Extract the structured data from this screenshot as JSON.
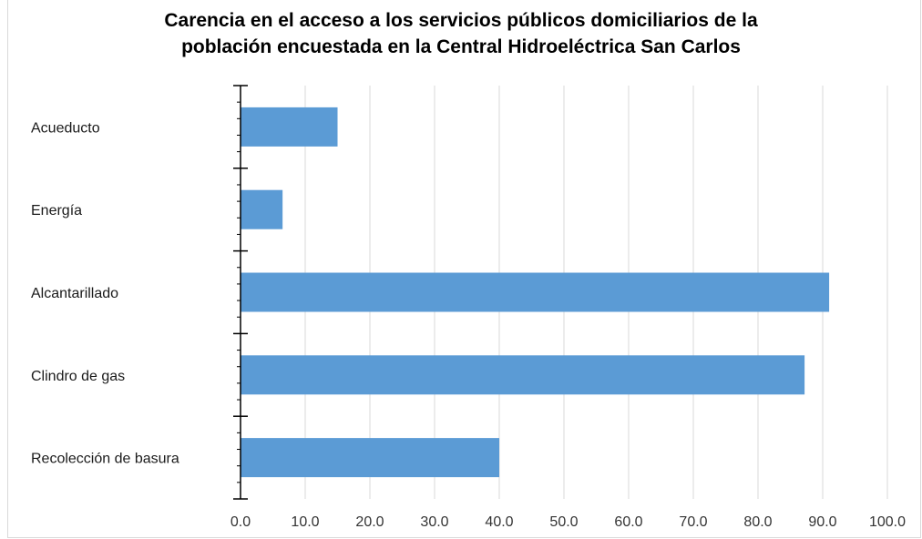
{
  "chart_data": {
    "type": "bar",
    "orientation": "horizontal",
    "title_lines": [
      "Carencia en el acceso a los servicios públicos domiciliarios de la",
      "población encuestada en la Central Hidroeléctrica San Carlos"
    ],
    "categories": [
      "Acueducto",
      "Energía",
      "Alcantarillado",
      "Clindro de gas",
      "Recolección de basura"
    ],
    "values": [
      15.0,
      6.5,
      91.0,
      87.2,
      40.0
    ],
    "xlim": [
      0,
      100
    ],
    "xticks": [
      "0.0",
      "10.0",
      "20.0",
      "30.0",
      "40.0",
      "50.0",
      "60.0",
      "70.0",
      "80.0",
      "90.0",
      "100.0"
    ],
    "xlabel": "",
    "ylabel": "",
    "grid": "vertical",
    "legend": "none",
    "bar_color": "#5b9bd5",
    "grid_color": "#d9d9d9"
  }
}
